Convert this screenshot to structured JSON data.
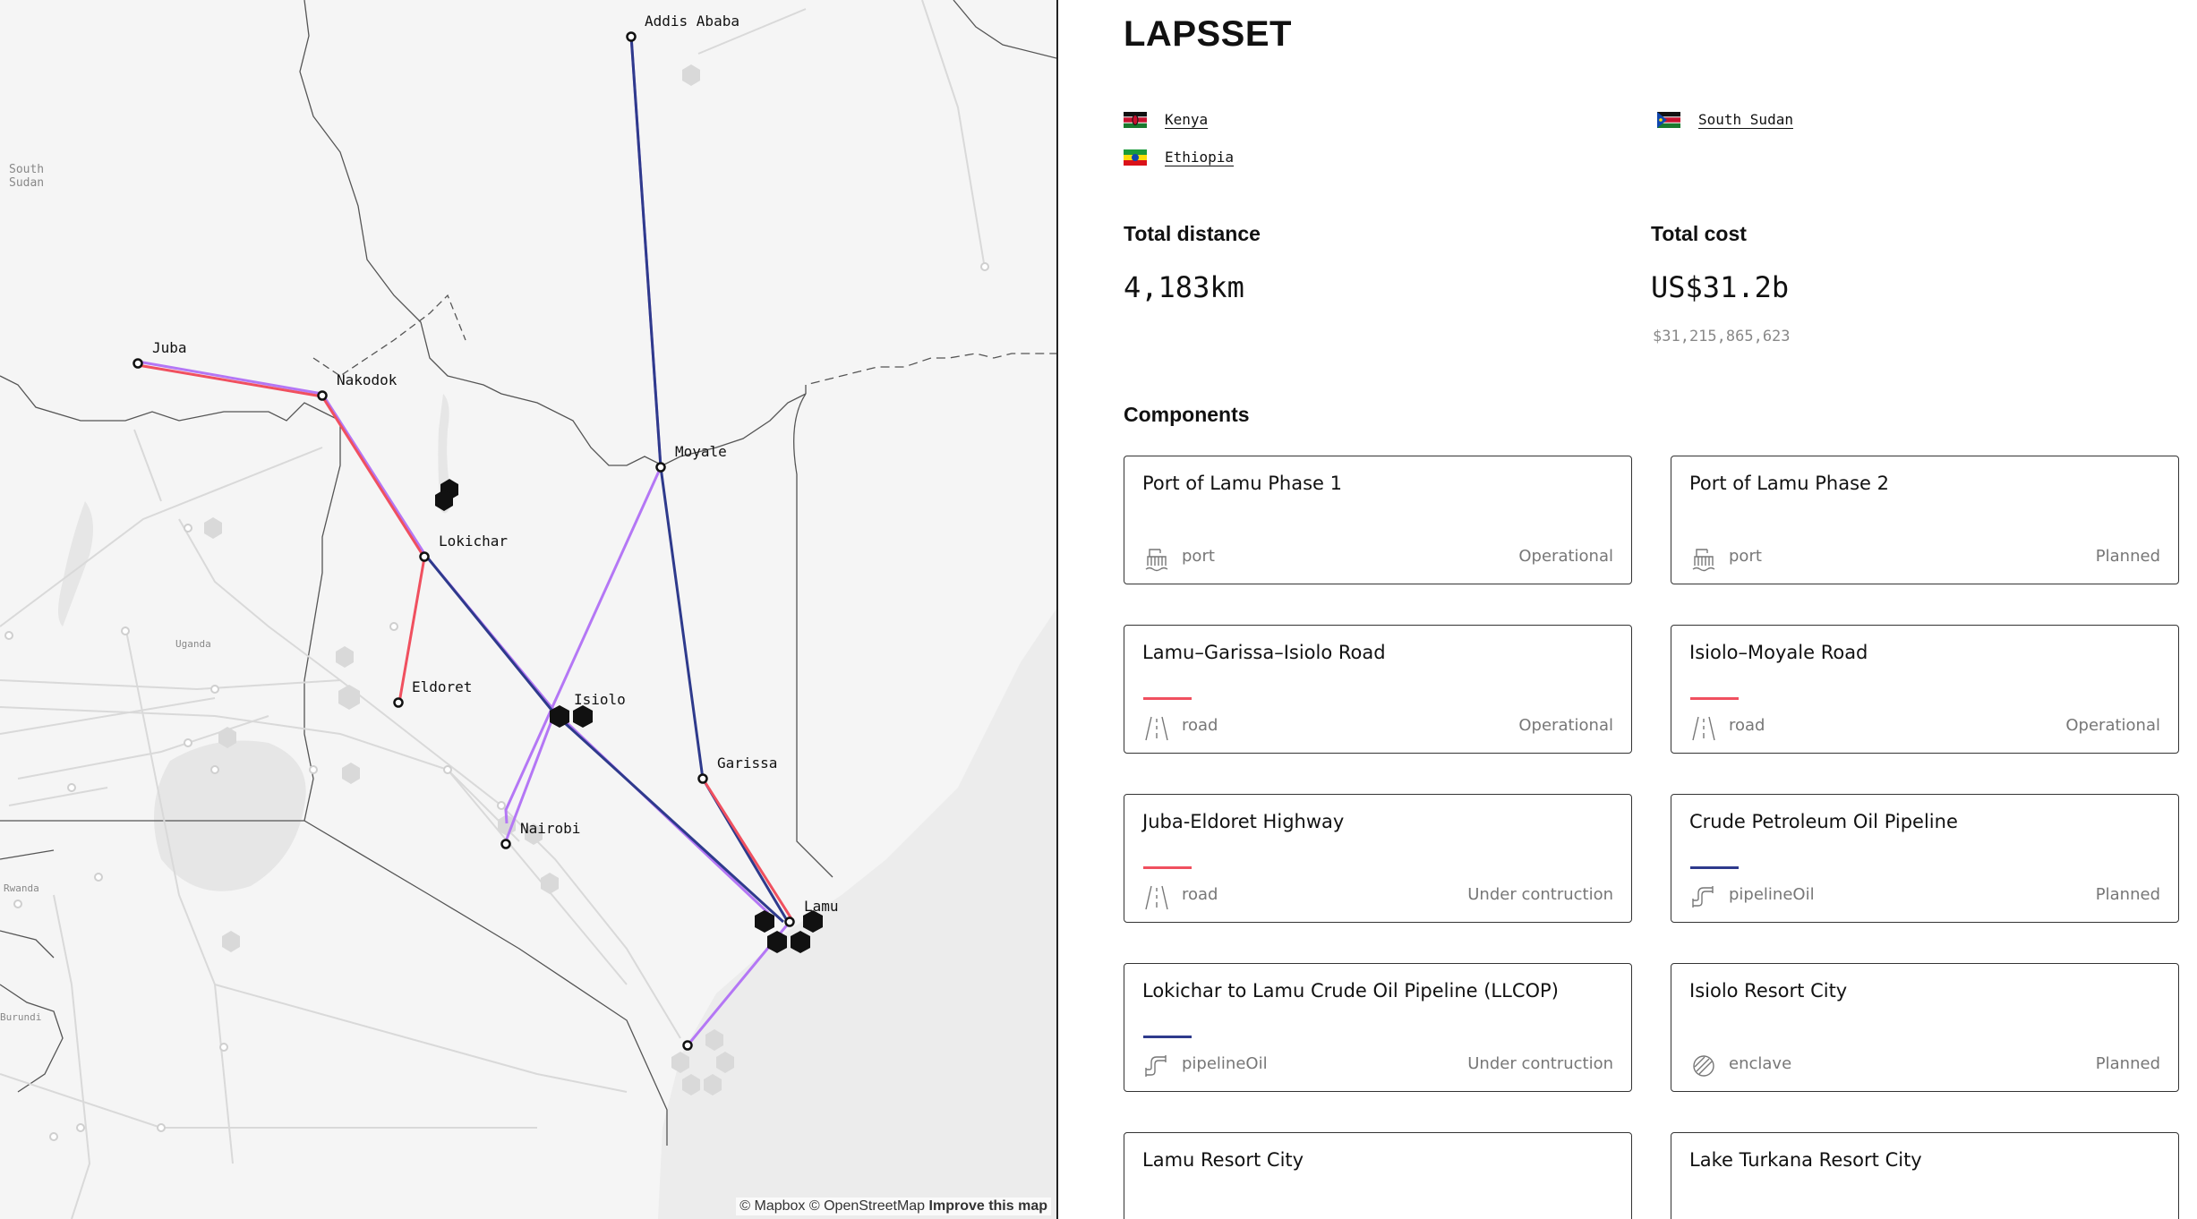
{
  "title": "LAPSSET",
  "countries": [
    {
      "name": "Kenya",
      "flag": "kenya-flag"
    },
    {
      "name": "South Sudan",
      "flag": "south-sudan-flag"
    },
    {
      "name": "Ethiopia",
      "flag": "ethiopia-flag"
    }
  ],
  "stats": {
    "distance_label": "Total distance",
    "distance_value": "4,183km",
    "cost_label": "Total cost",
    "cost_value": "US$31.2b",
    "cost_exact": "$31,215,865,623"
  },
  "components_heading": "Components",
  "components": [
    {
      "name": "Port of Lamu Phase 1",
      "type": "port",
      "status": "Operational",
      "icon": "port-icon",
      "line_color": ""
    },
    {
      "name": "Port of Lamu Phase 2",
      "type": "port",
      "status": "Planned",
      "icon": "port-icon",
      "line_color": ""
    },
    {
      "name": "Lamu–Garissa–Isiolo Road",
      "type": "road",
      "status": "Operational",
      "icon": "road-icon",
      "line_color": "#f0505f"
    },
    {
      "name": "Isiolo–Moyale Road",
      "type": "road",
      "status": "Operational",
      "icon": "road-icon",
      "line_color": "#f0505f"
    },
    {
      "name": "Juba-Eldoret Highway",
      "type": "road",
      "status": "Under contruction",
      "icon": "road-icon",
      "line_color": "#f0505f"
    },
    {
      "name": "Crude Petroleum Oil Pipeline",
      "type": "pipelineOil",
      "status": "Planned",
      "icon": "pipeline-icon",
      "line_color": "#2e3a8c"
    },
    {
      "name": "Lokichar to Lamu Crude Oil Pipeline (LLCOP)",
      "type": "pipelineOil",
      "status": "Under contruction",
      "icon": "pipeline-icon",
      "line_color": "#2e3a8c"
    },
    {
      "name": "Isiolo Resort City",
      "type": "enclave",
      "status": "Planned",
      "icon": "enclave-icon",
      "line_color": ""
    },
    {
      "name": "Lamu Resort City",
      "type": "",
      "status": "",
      "icon": "",
      "line_color": ""
    },
    {
      "name": "Lake Turkana Resort City",
      "type": "",
      "status": "",
      "icon": "",
      "line_color": ""
    }
  ],
  "map": {
    "places": [
      "Addis Ababa",
      "Juba",
      "Nakodok",
      "Moyale",
      "Lokichar",
      "Eldoret",
      "Isiolo",
      "Garissa",
      "Nairobi",
      "Lamu"
    ],
    "regions": {
      "south_sudan_1": "South",
      "south_sudan_2": "Sudan",
      "uganda": "Uganda",
      "rwanda": "Rwanda",
      "burundi": "Burundi"
    },
    "colors": {
      "road": "#f0505f",
      "pipeline": "#2e3a8c",
      "rail": "#b477f5"
    },
    "attribution": {
      "mapbox": "© Mapbox",
      "osm": "© OpenStreetMap",
      "improve": "Improve this map"
    }
  }
}
